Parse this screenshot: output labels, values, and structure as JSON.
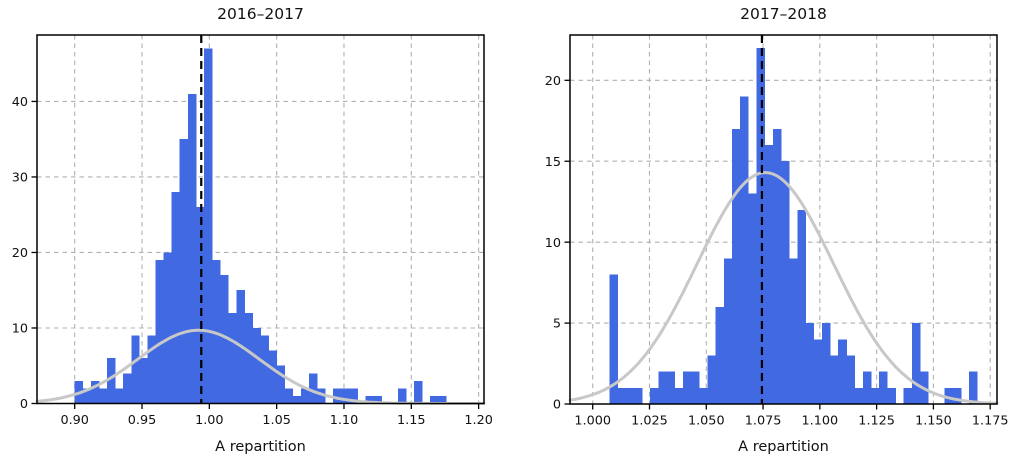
{
  "figure": {
    "background_color": "#ffffff",
    "bar_color": "#4169e1",
    "curve_color": "#c8c8c8",
    "grid_color": "#b0b0b0",
    "mean_line_color": "#000000",
    "spine_color": "#000000",
    "text_color": "#111111"
  },
  "chart_data": [
    {
      "type": "bar",
      "subtype": "histogram-with-gaussian-fit",
      "title": "2016–2017",
      "xlabel": "A repartition",
      "ylabel": "",
      "bin_start": 0.9,
      "bin_width": 0.006,
      "counts": [
        3,
        2,
        3,
        2,
        6,
        2,
        4,
        9,
        6,
        9,
        19,
        20,
        28,
        35,
        41,
        26,
        47,
        19,
        17,
        12,
        15,
        12,
        10,
        9,
        7,
        5,
        2,
        1,
        2,
        4,
        2,
        0,
        2,
        2,
        2,
        0,
        1,
        1,
        0,
        0,
        2,
        0,
        3,
        0,
        1,
        1
      ],
      "xticks": [
        0.9,
        0.95,
        1.0,
        1.05,
        1.1,
        1.15,
        1.2
      ],
      "xtick_labels": [
        "0.90",
        "0.95",
        "1.00",
        "1.05",
        "1.10",
        "1.15",
        "1.20"
      ],
      "yticks": [
        0,
        10,
        20,
        30,
        40
      ],
      "ytick_labels": [
        "0",
        "10",
        "20",
        "30",
        "40"
      ],
      "xlim": [
        0.872,
        1.204
      ],
      "ylim": [
        0,
        48.8
      ],
      "grid": true,
      "legend": null,
      "mean_line": {
        "x": 0.994,
        "style": "dashed",
        "color": "#000000"
      },
      "fit_curve": {
        "shape": "gaussian",
        "amplitude": 9.7,
        "mean": 0.992,
        "sigma": 0.045,
        "color": "#c8c8c8"
      }
    },
    {
      "type": "bar",
      "subtype": "histogram-with-gaussian-fit",
      "title": "2017–2018",
      "xlabel": "A repartition",
      "ylabel": "",
      "bin_start": 1.0073,
      "bin_width": 0.0036,
      "counts": [
        8,
        1,
        1,
        1,
        0,
        1,
        2,
        2,
        1,
        2,
        2,
        1,
        3,
        6,
        9,
        17,
        19,
        13,
        22,
        16,
        17,
        15,
        9,
        12,
        5,
        4,
        5,
        3,
        4,
        3,
        1,
        2,
        1,
        2,
        1,
        0,
        1,
        5,
        2,
        0,
        0,
        1,
        1,
        0,
        2
      ],
      "xticks": [
        1.0,
        1.025,
        1.05,
        1.075,
        1.1,
        1.125,
        1.15,
        1.175
      ],
      "xtick_labels": [
        "1.000",
        "1.025",
        "1.050",
        "1.075",
        "1.100",
        "1.125",
        "1.150",
        "1.175"
      ],
      "yticks": [
        0,
        5,
        10,
        15,
        20
      ],
      "ytick_labels": [
        "0",
        "5",
        "10",
        "15",
        "20"
      ],
      "xlim": [
        0.99,
        1.178
      ],
      "ylim": [
        0,
        22.8
      ],
      "grid": true,
      "legend": null,
      "mean_line": {
        "x": 1.0745,
        "style": "dashed",
        "color": "#000000"
      },
      "fit_curve": {
        "shape": "gaussian",
        "amplitude": 14.3,
        "mean": 1.076,
        "sigma": 0.03,
        "color": "#c8c8c8"
      }
    }
  ]
}
